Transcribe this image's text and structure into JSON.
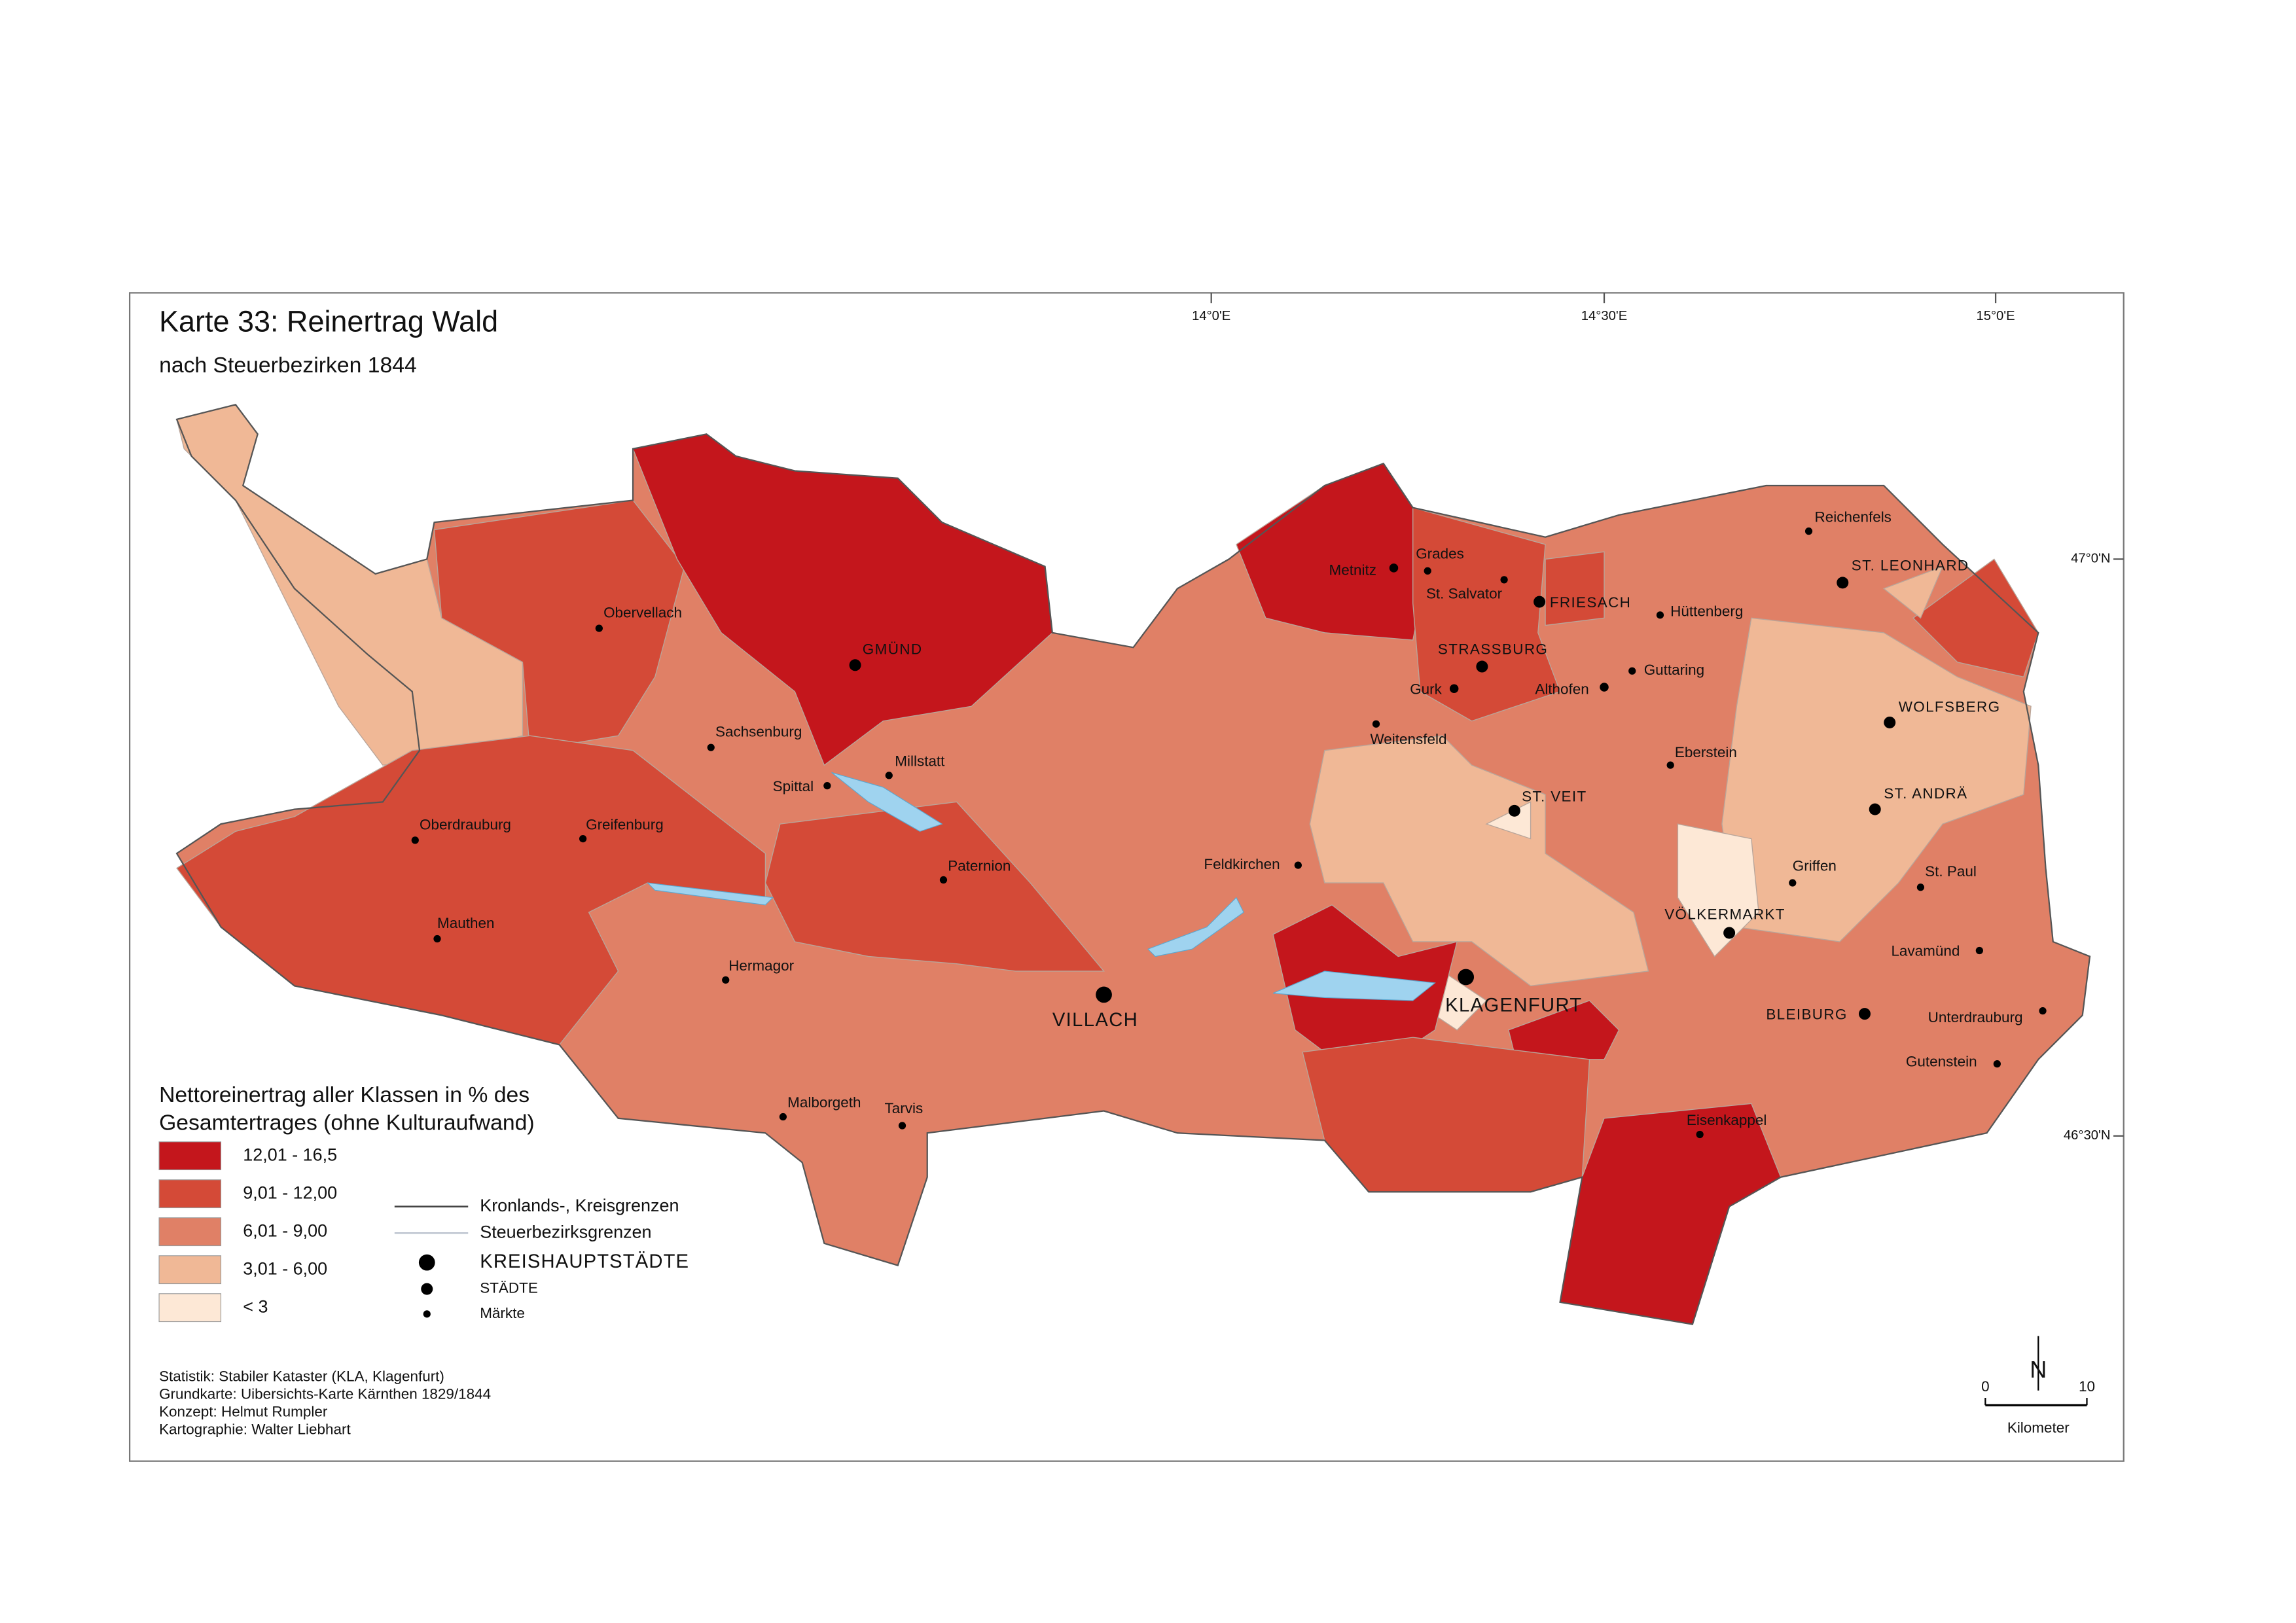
{
  "title": "Karte 33: Reinertrag Wald",
  "subtitle": "nach Steuerbezirken 1844",
  "graticule": {
    "longitudes": [
      "14°0'E",
      "14°30'E",
      "15°0'E"
    ],
    "latitudes": [
      "47°0'N",
      "46°30'N"
    ]
  },
  "places": [
    "Obervellach",
    "GMÜND",
    "Sachsenburg",
    "Millstatt",
    "Spittal",
    "Oberdrauburg",
    "Greifenburg",
    "Paternion",
    "Mauthen",
    "Hermagor",
    "VILLACH",
    "Malborgeth",
    "Tarvis",
    "Metnitz",
    "Grades",
    "St. Salvator",
    "FRIESACH",
    "Hüttenberg",
    "STRASSBURG",
    "Gurk",
    "Althofen",
    "Guttaring",
    "Weitensfeld",
    "Eberstein",
    "ST. VEIT",
    "Feldkirchen",
    "VÖLKERMARKT",
    "KLAGENFURT",
    "Eisenkappel",
    "Reichenfels",
    "ST. LEONHARD",
    "WOLFSBERG",
    "ST. ANDRÄ",
    "Griffen",
    "St. Paul",
    "Lavamünd",
    "BLEIBURG",
    "Unterdrauburg",
    "Gutenstein"
  ],
  "legend": {
    "title": [
      "Nettoreinertrag aller Klassen in % des",
      "Gesamtertrages (ohne Kulturaufwand)"
    ],
    "classes": [
      {
        "label": "12,01 - 16,5",
        "color": "#c4161c"
      },
      {
        "label": "9,01 - 12,00",
        "color": "#d44a37"
      },
      {
        "label": "6,01 - 9,00",
        "color": "#e08066"
      },
      {
        "label": "3,01 - 6,00",
        "color": "#f0b896"
      },
      {
        "label": "< 3",
        "color": "#fde8d6"
      }
    ],
    "lines": [
      "Kronlands-, Kreisgrenzen",
      "Steuerbezirksgrenzen"
    ],
    "points": [
      "KREISHAUPTSTÄDTE",
      "STÄDTE",
      "Märkte"
    ]
  },
  "credits": [
    "Statistik: Stabiler Kataster (KLA, Klagenfurt)",
    "Grundkarte: Uibersichts-Karte Kärnthen 1829/1844",
    "Konzept: Helmut Rumpler",
    "Kartographie: Walter Liebhart"
  ],
  "scale": {
    "start": "0",
    "end": "10",
    "unit": "Kilometer",
    "north": "N"
  }
}
